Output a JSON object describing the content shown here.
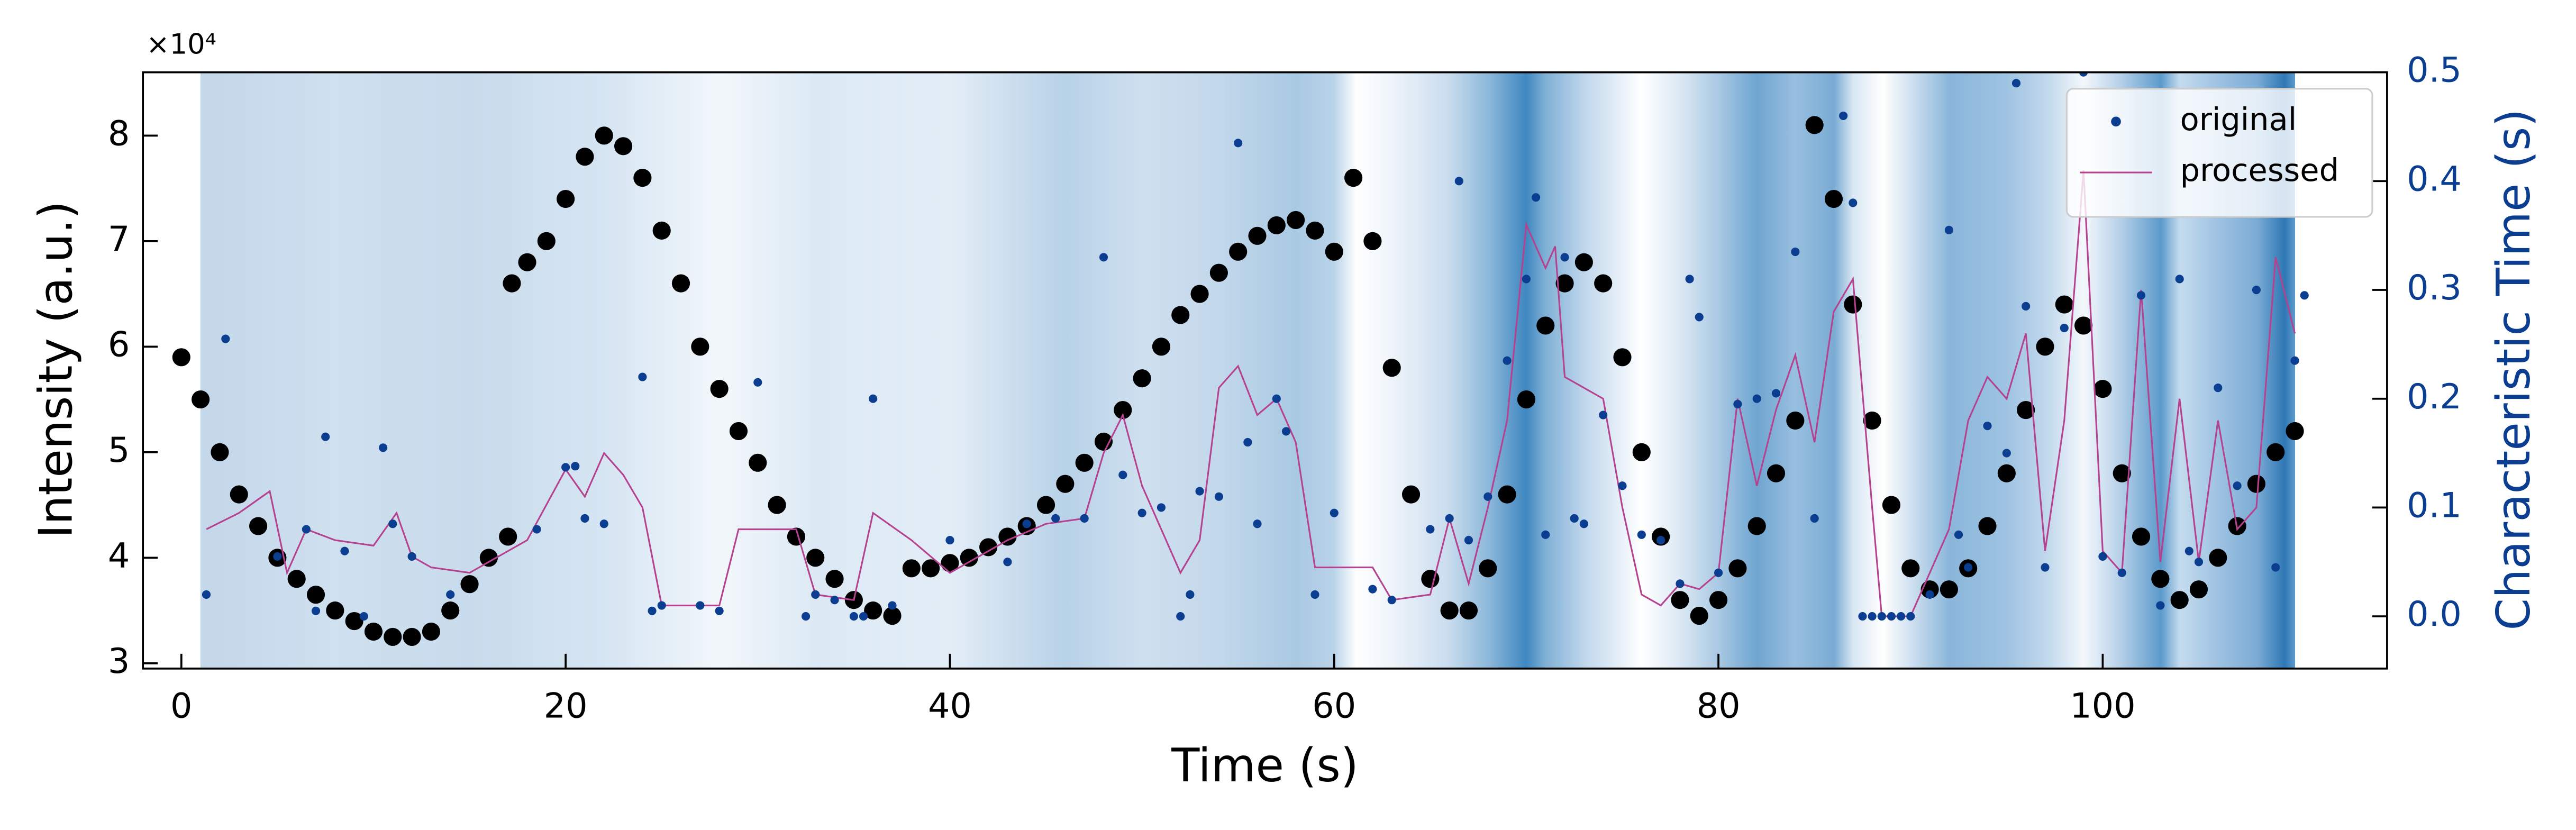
{
  "chart_data": {
    "type": "scatter",
    "x_label": "Time (s)",
    "y_label": "Intensity (a.u.)",
    "y2_label": "Characteristic Time (s)",
    "y_offset_label": "×10⁴",
    "xlim": [
      -2,
      114.8
    ],
    "xticks": [
      0,
      20,
      40,
      60,
      80,
      100
    ],
    "ylim": [
      2.95,
      8.6
    ],
    "yticks": [
      3,
      4,
      5,
      6,
      7,
      8
    ],
    "y2lim": [
      -0.048,
      0.5
    ],
    "y2ticks": [
      {
        "value": 0,
        "label": "0.0"
      },
      0.1,
      0.2,
      0.3,
      0.4,
      0.5
    ],
    "y2_color": "#0b3d91",
    "legend": "upper right",
    "series": [
      {
        "color": "#000000",
        "x": [
          0,
          1,
          2,
          3,
          4,
          5,
          6,
          7,
          8,
          9,
          10,
          11,
          12,
          13,
          14,
          15,
          16,
          17,
          17.2,
          18,
          19,
          20,
          21,
          22,
          23,
          24,
          25,
          26,
          27,
          28,
          29,
          30,
          31,
          32,
          33,
          34,
          35,
          36,
          37,
          38,
          39,
          40,
          41,
          42,
          43,
          44,
          45,
          46,
          47,
          48,
          49,
          50,
          51,
          52,
          53,
          54,
          55,
          56,
          57,
          58,
          59,
          60,
          61,
          62,
          63,
          64,
          65,
          66,
          67,
          68,
          69,
          70,
          71,
          72,
          73,
          74,
          75,
          76,
          77,
          78,
          79,
          80,
          81,
          82,
          83,
          84,
          85,
          86,
          87,
          88,
          89,
          90,
          91,
          92,
          93,
          94,
          95,
          96,
          97,
          98,
          99,
          100,
          101,
          102,
          103,
          104,
          105,
          106,
          107,
          108,
          109,
          110
        ],
        "values": [
          5.9,
          5.5,
          5.0,
          4.6,
          4.3,
          4.0,
          3.8,
          3.65,
          3.5,
          3.4,
          3.3,
          3.25,
          3.25,
          3.3,
          3.5,
          3.75,
          4.0,
          4.2,
          6.6,
          6.8,
          7.0,
          7.4,
          7.8,
          8.0,
          7.9,
          7.6,
          7.1,
          6.6,
          6.0,
          5.6,
          5.2,
          4.9,
          4.5,
          4.2,
          4.0,
          3.8,
          3.6,
          3.5,
          3.45,
          3.9,
          3.9,
          3.95,
          4.0,
          4.1,
          4.2,
          4.3,
          4.5,
          4.7,
          4.9,
          5.1,
          5.4,
          5.7,
          6.0,
          6.3,
          6.5,
          6.7,
          6.9,
          7.05,
          7.15,
          7.2,
          7.1,
          6.9,
          7.6,
          7.0,
          5.8,
          4.6,
          3.8,
          3.5,
          3.5,
          3.9,
          4.6,
          5.5,
          6.2,
          6.6,
          6.8,
          6.6,
          5.9,
          5.0,
          4.2,
          3.6,
          3.45,
          3.6,
          3.9,
          4.3,
          4.8,
          5.3,
          8.1,
          7.4,
          6.4,
          5.3,
          4.5,
          3.9,
          3.7,
          3.7,
          3.9,
          4.3,
          4.8,
          5.4,
          6.0,
          6.4,
          6.2,
          5.6,
          4.8,
          4.2,
          3.8,
          3.6,
          3.7,
          4.0,
          4.3,
          4.7,
          5.0,
          5.2
        ]
      },
      {
        "name": "original",
        "color": "#0b3d91",
        "axis": "y2",
        "x": [
          1.3,
          2.3,
          5,
          6.5,
          7,
          7.5,
          8.5,
          9.5,
          10.5,
          11,
          12,
          14,
          18.5,
          20,
          20.5,
          21,
          22,
          24,
          24.5,
          25,
          27,
          28,
          30,
          32.5,
          33,
          34,
          35,
          35.5,
          36,
          37,
          40,
          43,
          44,
          45.5,
          47,
          48,
          49,
          50,
          51,
          52,
          52.5,
          53,
          54,
          55,
          55.5,
          56,
          57,
          57.5,
          59,
          60,
          62,
          63,
          65,
          66,
          66.5,
          67,
          68,
          69,
          70,
          70.5,
          71,
          72,
          72.5,
          73,
          74,
          75,
          76,
          77,
          78,
          78.5,
          79,
          80,
          81,
          82,
          83,
          84,
          85,
          86.5,
          87,
          87.5,
          88,
          88.5,
          89,
          89.5,
          90,
          91,
          92,
          92.5,
          93,
          94,
          95,
          95.5,
          96,
          97,
          98,
          99,
          100,
          101,
          102,
          103,
          104,
          104.5,
          105,
          106,
          107,
          108,
          109,
          110,
          110.5
        ],
        "values": [
          0.02,
          0.255,
          0.055,
          0.08,
          0.005,
          0.165,
          0.06,
          0.0,
          0.155,
          0.085,
          0.055,
          0.02,
          0.08,
          0.137,
          0.138,
          0.09,
          0.085,
          0.22,
          0.005,
          0.01,
          0.01,
          0.005,
          0.215,
          0.0,
          0.02,
          0.015,
          0.0,
          0.0,
          0.2,
          0.01,
          0.07,
          0.05,
          0.085,
          0.09,
          0.09,
          0.33,
          0.13,
          0.095,
          0.1,
          0.0,
          0.02,
          0.115,
          0.11,
          0.435,
          0.16,
          0.085,
          0.2,
          0.17,
          0.02,
          0.095,
          0.025,
          0.015,
          0.08,
          0.09,
          0.4,
          0.07,
          0.11,
          0.235,
          0.31,
          0.385,
          0.075,
          0.33,
          0.09,
          0.085,
          0.185,
          0.12,
          0.075,
          0.07,
          0.03,
          0.31,
          0.275,
          0.04,
          0.195,
          0.2,
          0.205,
          0.335,
          0.09,
          0.46,
          0.38,
          0.0,
          0.0,
          0.0,
          0.0,
          0.0,
          0.0,
          0.02,
          0.355,
          0.075,
          0.045,
          0.175,
          0.15,
          0.49,
          0.285,
          0.045,
          0.265,
          0.5,
          0.055,
          0.04,
          0.295,
          0.01,
          0.31,
          0.06,
          0.05,
          0.21,
          0.12,
          0.3,
          0.045,
          0.235,
          0.295
        ]
      },
      {
        "name": "processed",
        "type": "line",
        "color": "#b5418f",
        "axis": "y2",
        "x": [
          1.3,
          3,
          4.6,
          5.5,
          6.5,
          8,
          10,
          11.2,
          12,
          13,
          15,
          18,
          20,
          21,
          22,
          23,
          24,
          25,
          27,
          28,
          29,
          32,
          33,
          35,
          36,
          38,
          40,
          43,
          45,
          47,
          48,
          49,
          50,
          52,
          53,
          54,
          55,
          56,
          57,
          58,
          59,
          61,
          62,
          63,
          65,
          66,
          67,
          68,
          69,
          70,
          71,
          71.5,
          72,
          73,
          74,
          75,
          76,
          77,
          78,
          79,
          80,
          81,
          82,
          83,
          84,
          85,
          86,
          87,
          88,
          88.5,
          90,
          91,
          92,
          93,
          94,
          95,
          96,
          97,
          98,
          99,
          100,
          101,
          102,
          103,
          104,
          105,
          106,
          107,
          108,
          109,
          110
        ],
        "values": [
          0.08,
          0.095,
          0.115,
          0.04,
          0.08,
          0.07,
          0.065,
          0.095,
          0.055,
          0.045,
          0.04,
          0.07,
          0.135,
          0.11,
          0.15,
          0.13,
          0.1,
          0.01,
          0.01,
          0.01,
          0.08,
          0.08,
          0.02,
          0.015,
          0.095,
          0.07,
          0.04,
          0.07,
          0.085,
          0.09,
          0.15,
          0.185,
          0.12,
          0.04,
          0.07,
          0.21,
          0.23,
          0.185,
          0.2,
          0.16,
          0.045,
          0.045,
          0.045,
          0.015,
          0.02,
          0.09,
          0.03,
          0.1,
          0.18,
          0.36,
          0.32,
          0.34,
          0.22,
          0.21,
          0.2,
          0.1,
          0.02,
          0.01,
          0.03,
          0.025,
          0.04,
          0.2,
          0.12,
          0.19,
          0.24,
          0.16,
          0.28,
          0.31,
          0.1,
          0.0,
          0.0,
          0.04,
          0.08,
          0.18,
          0.22,
          0.2,
          0.26,
          0.06,
          0.18,
          0.41,
          0.06,
          0.04,
          0.3,
          0.05,
          0.2,
          0.05,
          0.18,
          0.08,
          0.1,
          0.33,
          0.26
        ]
      }
    ]
  }
}
